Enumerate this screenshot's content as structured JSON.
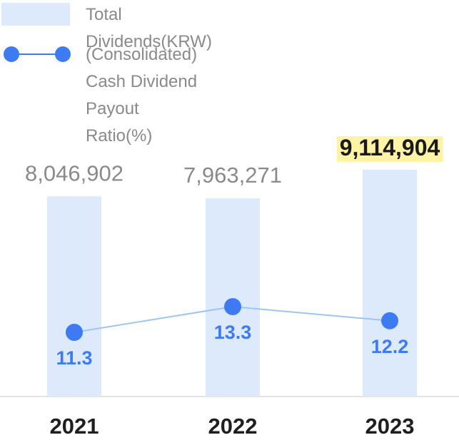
{
  "legend": {
    "bar_label": "Total Dividends(KRW)",
    "line_label_line1": "(Consolidated) Cash Dividend Payout",
    "line_label_line2": "Ratio(%)"
  },
  "colors": {
    "bar": "#ddeafc",
    "line": "#9cc4f5",
    "dot": "#3e7bf2",
    "ratio_text": "#3e7bf2",
    "value_text": "#8a8a8a",
    "highlight_bg": "#fff3a6",
    "highlight_text": "#1a1a1a",
    "year_text": "#1f1f1f",
    "axis": "#d8d8d8"
  },
  "chart_data": {
    "type": "bar",
    "categories": [
      "2021",
      "2022",
      "2023"
    ],
    "series": [
      {
        "name": "Total Dividends(KRW)",
        "type": "bar",
        "values": [
          8046902,
          7963271,
          9114904
        ],
        "labels": [
          "8,046,902",
          "7,963,271",
          "9,114,904"
        ],
        "highlighted_index": 2
      },
      {
        "name": "(Consolidated) Cash Dividend Payout Ratio(%)",
        "type": "line",
        "values": [
          11.3,
          13.3,
          12.2
        ],
        "labels": [
          "11.3",
          "13.3",
          "12.2"
        ]
      }
    ],
    "grid": false,
    "legend_position": "top-left"
  }
}
